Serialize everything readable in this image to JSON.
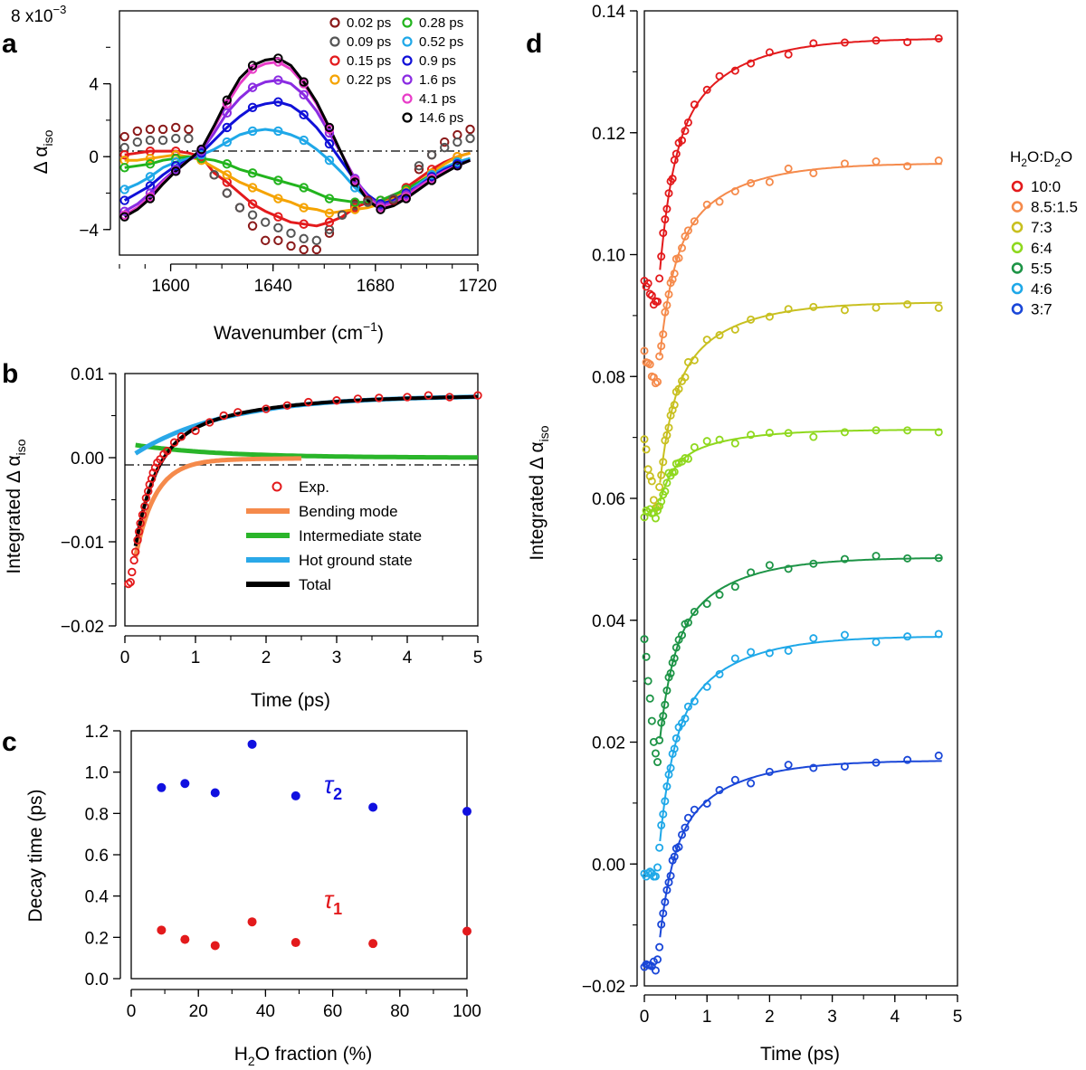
{
  "colors": {
    "p002": "#8b1a1a",
    "p009": "#555555",
    "p015": "#e31a1c",
    "p022": "#f5a300",
    "p028": "#22b41d",
    "p052": "#1fa8e8",
    "p09": "#1010d8",
    "p16": "#8a2be2",
    "p41": "#e83cc8",
    "p146": "#000000",
    "bend": "#f58a4b",
    "inter": "#2ab52a",
    "hot": "#2aa8e8",
    "total": "#000000",
    "exp": "#e31a1c",
    "tau": "#1010e0",
    "tau1": "#e31a1c",
    "d100": "#e31a1c",
    "d85": "#f58a4b",
    "d70": "#c8c020",
    "d60": "#8fd81e",
    "d50": "#1d9446",
    "d40": "#1fa8e8",
    "d30": "#1a47d8"
  },
  "chart_data": [
    {
      "id": "a",
      "panel_label": "a",
      "type": "scatter",
      "xlabel": "Wavenumber (cm",
      "xlabel_sup": "−1",
      "xlabel_tail": ")",
      "ylabel_delta": "Δ α",
      "ylabel_sub": "iso",
      "y_multiplier_base": "8 x10",
      "y_multiplier_exp": "−3",
      "xlim": [
        1580,
        1720
      ],
      "ylim": [
        -5.4,
        8
      ],
      "xticks": [
        1600,
        1640,
        1680,
        1720
      ],
      "xtick_labels": [
        "1600",
        "1640",
        "1680",
        "1720"
      ],
      "yticks": [
        -4,
        0,
        4
      ],
      "ytick_labels": [
        "−4",
        "0",
        "4"
      ],
      "x": [
        1582,
        1587,
        1592,
        1597,
        1602,
        1607,
        1612,
        1617,
        1622,
        1627,
        1632,
        1637,
        1642,
        1647,
        1652,
        1657,
        1662,
        1667,
        1672,
        1677,
        1682,
        1687,
        1692,
        1697,
        1702,
        1707,
        1712,
        1717
      ],
      "series": [
        {
          "name": "0.02 ps",
          "color_key": "p002",
          "values": [
            1.1,
            1.4,
            1.5,
            1.5,
            1.6,
            1.5,
            0.2,
            -1.0,
            -2.0,
            -2.8,
            -3.8,
            -4.6,
            -4.6,
            -4.9,
            -5.1,
            -5.1,
            -4.2,
            -3.2,
            -2.6,
            -2.4,
            -2.6,
            -2.4,
            -2.1,
            -0.7,
            0.1,
            0.8,
            1.2,
            1.5
          ]
        },
        {
          "name": "0.09 ps",
          "color_key": "p009",
          "values": [
            0.5,
            0.8,
            0.9,
            0.9,
            1.0,
            1.0,
            0.1,
            -1.0,
            -2.0,
            -2.8,
            -3.2,
            -3.6,
            -3.9,
            -4.2,
            -4.5,
            -4.6,
            -4.0,
            -3.2,
            -2.7,
            -2.5,
            -2.7,
            -2.3,
            -1.7,
            -0.5,
            0.1,
            0.5,
            0.8,
            1.0
          ]
        },
        {
          "name": "0.15 ps",
          "color_key": "p015",
          "values": [
            0.1,
            0.2,
            0.3,
            0.3,
            0.3,
            0.2,
            0.0,
            -0.9,
            -1.4,
            -2.0,
            -2.6,
            -3.0,
            -3.3,
            -3.6,
            -3.7,
            -3.8,
            -3.6,
            -3.3,
            -2.8,
            -2.5,
            -2.4,
            -2.2,
            -1.7,
            -1.2,
            -0.7,
            -0.3,
            0.0,
            0.2
          ]
        },
        {
          "name": "0.22 ps",
          "color_key": "p022",
          "values": [
            -0.2,
            -0.2,
            -0.1,
            0.0,
            0.1,
            0.0,
            -0.2,
            -0.6,
            -1.0,
            -1.4,
            -1.7,
            -2.0,
            -2.3,
            -2.5,
            -2.8,
            -2.9,
            -3.1,
            -3.0,
            -2.9,
            -2.8,
            -2.6,
            -2.3,
            -1.9,
            -1.4,
            -0.9,
            -0.4,
            0.0,
            0.2
          ]
        },
        {
          "name": "0.28 ps",
          "color_key": "p028",
          "values": [
            -0.6,
            -0.5,
            -0.4,
            -0.2,
            -0.1,
            0.0,
            -0.1,
            -0.2,
            -0.4,
            -0.7,
            -0.9,
            -1.1,
            -1.3,
            -1.5,
            -1.7,
            -2.0,
            -2.3,
            -2.4,
            -2.5,
            -2.5,
            -2.4,
            -2.1,
            -1.8,
            -1.4,
            -1.0,
            -0.6,
            -0.3,
            -0.1
          ]
        },
        {
          "name": "0.52 ps",
          "color_key": "p052",
          "values": [
            -1.8,
            -1.5,
            -1.1,
            -0.6,
            -0.3,
            -0.1,
            0.1,
            0.4,
            0.8,
            1.2,
            1.4,
            1.5,
            1.4,
            1.2,
            0.9,
            0.4,
            -0.2,
            -0.9,
            -1.7,
            -2.3,
            -2.6,
            -2.4,
            -2.0,
            -1.5,
            -1.0,
            -0.6,
            -0.3,
            -0.1
          ]
        },
        {
          "name": "0.9 ps",
          "color_key": "p09",
          "values": [
            -2.4,
            -2.0,
            -1.6,
            -1.0,
            -0.5,
            -0.2,
            0.2,
            0.9,
            1.6,
            2.2,
            2.7,
            2.9,
            3.0,
            2.8,
            2.3,
            1.6,
            0.7,
            -0.3,
            -1.3,
            -2.1,
            -2.6,
            -2.4,
            -2.0,
            -1.6,
            -1.1,
            -0.7,
            -0.4,
            -0.2
          ]
        },
        {
          "name": "1.6 ps",
          "color_key": "p16",
          "values": [
            -3.0,
            -2.6,
            -2.0,
            -1.3,
            -0.7,
            -0.2,
            0.3,
            1.3,
            2.4,
            3.2,
            3.8,
            4.1,
            4.2,
            4.0,
            3.4,
            2.5,
            1.3,
            0.1,
            -1.2,
            -2.2,
            -2.7,
            -2.5,
            -2.1,
            -1.6,
            -1.2,
            -0.8,
            -0.5,
            -0.2
          ]
        },
        {
          "name": "4.1 ps",
          "color_key": "p41",
          "values": [
            -3.2,
            -2.8,
            -2.2,
            -1.4,
            -0.8,
            -0.2,
            0.4,
            1.6,
            2.9,
            4.0,
            4.8,
            5.1,
            5.2,
            4.8,
            4.0,
            2.9,
            1.5,
            0.1,
            -1.3,
            -2.3,
            -2.8,
            -2.6,
            -2.2,
            -1.7,
            -1.2,
            -0.8,
            -0.5,
            -0.2
          ]
        },
        {
          "name": "14.6 ps",
          "color_key": "p146",
          "values": [
            -3.3,
            -2.9,
            -2.3,
            -1.5,
            -0.8,
            -0.2,
            0.4,
            1.7,
            3.1,
            4.3,
            5.0,
            5.3,
            5.4,
            5.0,
            4.1,
            3.0,
            1.6,
            0.1,
            -1.4,
            -2.4,
            -2.9,
            -2.7,
            -2.3,
            -1.8,
            -1.3,
            -0.9,
            -0.5,
            -0.2
          ]
        }
      ]
    },
    {
      "id": "b",
      "panel_label": "b",
      "type": "line",
      "xlabel": "Time (ps)",
      "ylabel_main": "Integrated Δ α",
      "ylabel_sub": "iso",
      "xlim": [
        0,
        5
      ],
      "ylim": [
        -0.02,
        0.01
      ],
      "xticks": [
        0,
        1,
        2,
        3,
        4,
        5
      ],
      "xtick_labels": [
        "0",
        "1",
        "2",
        "3",
        "4",
        "5"
      ],
      "yticks": [
        -0.02,
        -0.01,
        0.0,
        0.01
      ],
      "ytick_labels": [
        "−0.02",
        "−0.01",
        "0.00",
        "0.01"
      ],
      "legend": [
        "Exp.",
        "Bending mode",
        "Intermediate state",
        "Hot ground state",
        "Total"
      ],
      "exp": {
        "x": [
          0.05,
          0.08,
          0.1,
          0.13,
          0.15,
          0.18,
          0.2,
          0.22,
          0.25,
          0.28,
          0.3,
          0.33,
          0.35,
          0.38,
          0.4,
          0.43,
          0.46,
          0.5,
          0.55,
          0.6,
          0.7,
          0.8,
          1.0,
          1.2,
          1.4,
          1.6,
          2.0,
          2.3,
          2.6,
          3.0,
          3.3,
          3.6,
          4.0,
          4.3,
          4.6,
          5.0
        ],
        "y": [
          -0.015,
          -0.0148,
          -0.0136,
          -0.0122,
          -0.0112,
          -0.0098,
          -0.0088,
          -0.0078,
          -0.0068,
          -0.0058,
          -0.0048,
          -0.004,
          -0.0032,
          -0.0025,
          -0.0018,
          -0.0012,
          -0.0006,
          -0.0002,
          0.0004,
          0.0008,
          0.0018,
          0.0025,
          0.0032,
          0.0042,
          0.005,
          0.0054,
          0.0058,
          0.0062,
          0.0066,
          0.0068,
          0.007,
          0.0071,
          0.0072,
          0.0074,
          0.0072,
          0.0074
        ]
      },
      "bend": {
        "x0": 0.15,
        "A": -0.0115,
        "tau": 0.28
      },
      "inter": {
        "x0": 0.15,
        "A": 0.0015,
        "tau": 1.2
      },
      "hot": {
        "x0": 0.15,
        "A": 0.0074,
        "tau": 1.3,
        "start": 0.0005
      }
    },
    {
      "id": "c",
      "panel_label": "c",
      "type": "scatter",
      "xlabel": "H",
      "xlabel_sub": "2",
      "xlabel_tail": "O fraction (%)",
      "ylabel": "Decay time (ps)",
      "xlim": [
        0,
        100
      ],
      "ylim": [
        0,
        1.2
      ],
      "xticks": [
        0,
        20,
        40,
        60,
        80,
        100
      ],
      "xtick_labels": [
        "0",
        "20",
        "40",
        "60",
        "80",
        "100"
      ],
      "yticks": [
        0.0,
        0.2,
        0.4,
        0.6,
        0.8,
        1.0,
        1.2
      ],
      "ytick_labels": [
        "0.0",
        "0.2",
        "0.4",
        "0.6",
        "0.8",
        "1.0",
        "1.2"
      ],
      "tau2_label": "τ",
      "tau2_sub": "2",
      "tau1_label": "τ",
      "tau1_sub": "1",
      "tau2": {
        "x": [
          9,
          16,
          25,
          36,
          49,
          72,
          100
        ],
        "y": [
          0.925,
          0.945,
          0.9,
          1.135,
          0.885,
          0.83,
          0.81
        ]
      },
      "tau1": {
        "x": [
          9,
          16,
          25,
          36,
          49,
          72,
          100
        ],
        "y": [
          0.235,
          0.19,
          0.16,
          0.275,
          0.175,
          0.17,
          0.23
        ]
      }
    },
    {
      "id": "d",
      "panel_label": "d",
      "type": "line",
      "xlabel": "Time (ps)",
      "ylabel_main": "Integrated Δ α",
      "ylabel_sub": "iso",
      "xlim": [
        0,
        5
      ],
      "ylim": [
        -0.02,
        0.14
      ],
      "xticks": [
        0,
        1,
        2,
        3,
        4,
        5
      ],
      "xtick_labels": [
        "0",
        "1",
        "2",
        "3",
        "4",
        "5"
      ],
      "yticks": [
        -0.02,
        0.0,
        0.02,
        0.04,
        0.06,
        0.08,
        0.1,
        0.12,
        0.14
      ],
      "ytick_labels": [
        "−0.02",
        "0.00",
        "0.02",
        "0.04",
        "0.06",
        "0.08",
        "0.10",
        "0.12",
        "0.14"
      ],
      "legend_title_main": "H",
      "legend_title_sub1": "2",
      "legend_title_mid": "O:D",
      "legend_title_sub2": "2",
      "legend_title_tail": "O",
      "series": [
        {
          "name": "10:0",
          "color_key": "d100",
          "start": 0.096,
          "min": 0.091,
          "plateau": 0.1355
        },
        {
          "name": "8.5:1.5",
          "color_key": "d85",
          "start": 0.084,
          "min": 0.078,
          "plateau": 0.115
        },
        {
          "name": "7:3",
          "color_key": "d70",
          "start": 0.069,
          "min": 0.0575,
          "plateau": 0.0922
        },
        {
          "name": "6:4",
          "color_key": "d60",
          "start": 0.0575,
          "min": 0.0575,
          "plateau": 0.0713
        },
        {
          "name": "5:5",
          "color_key": "d50",
          "start": 0.037,
          "min": 0.0155,
          "plateau": 0.0503
        },
        {
          "name": "4:6",
          "color_key": "d40",
          "start": -0.002,
          "min": -0.002,
          "plateau": 0.0374
        },
        {
          "name": "3:7",
          "color_key": "d30",
          "start": -0.016,
          "min": -0.017,
          "plateau": 0.017
        }
      ]
    }
  ]
}
